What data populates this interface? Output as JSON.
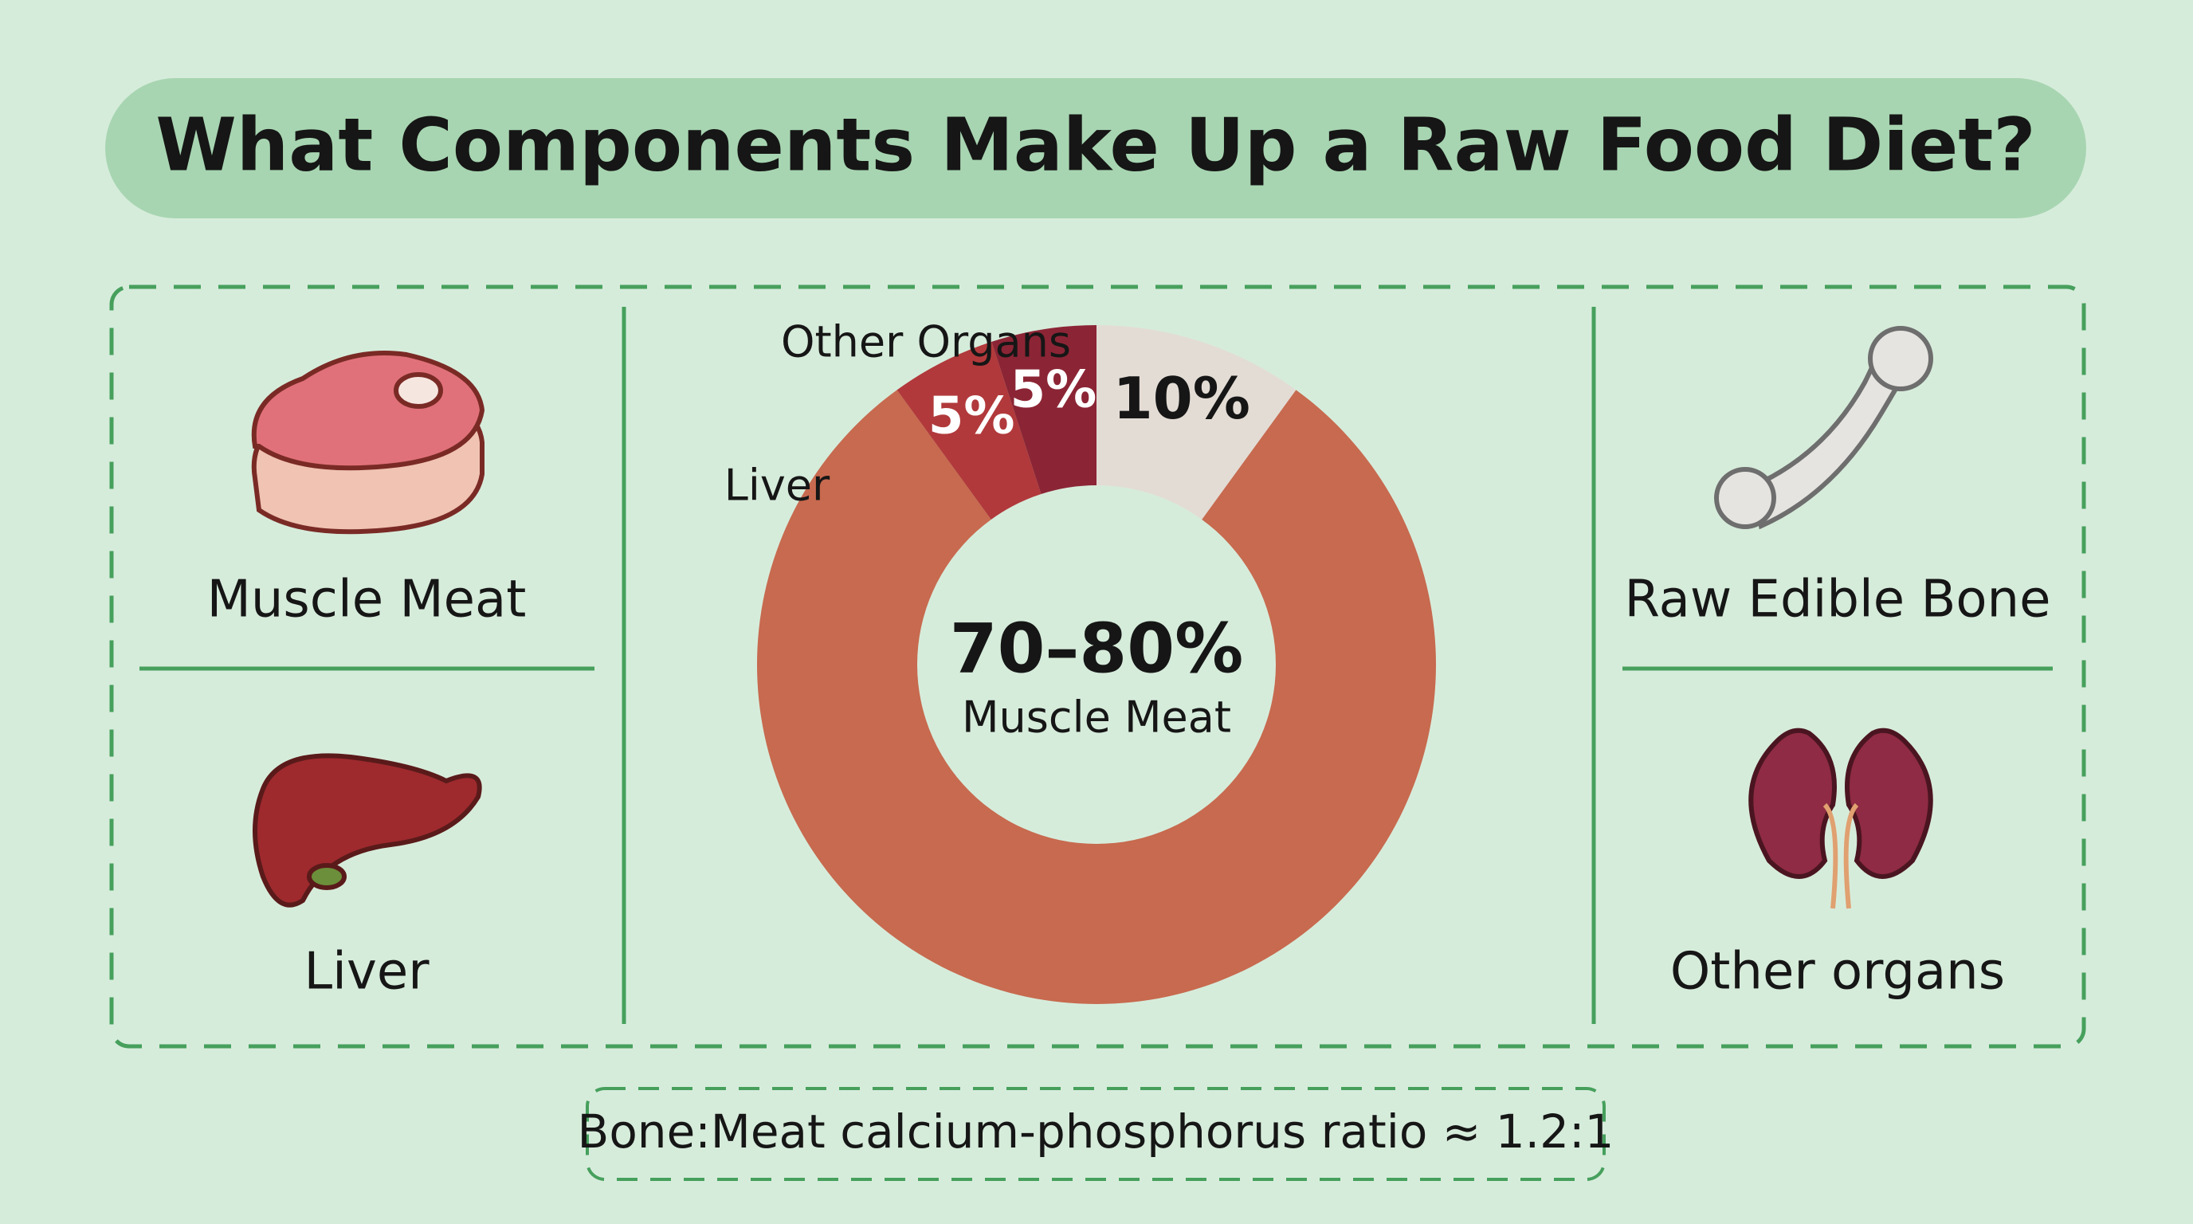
{
  "header": {
    "title": "What Components Make Up a Raw Food Diet?"
  },
  "panels": {
    "left": [
      "Muscle Meat",
      "Liver"
    ],
    "right": [
      "Raw Edible Bone",
      "Other organs"
    ]
  },
  "chart_data": {
    "type": "donut",
    "categories": [
      null,
      "Muscle Meat",
      "Liver",
      "Other Organs"
    ],
    "values": [
      10,
      80,
      5,
      5
    ],
    "value_labels": [
      "10%",
      "70–80%",
      "5%",
      "5%"
    ],
    "colors": [
      "#e3dcd5",
      "#c76a4f",
      "#b1393b",
      "#8b2535"
    ]
  },
  "footer": {
    "note": "Bone:Meat calcium-phosphorus ratio ≈ 1.2:1"
  }
}
